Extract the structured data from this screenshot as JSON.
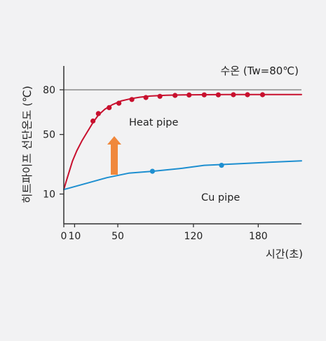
{
  "chart_data": {
    "type": "line",
    "ylabel": "히트파이프 선단온도 (℃)",
    "xlabel": "시간(초)",
    "x_ticks": [
      0,
      10,
      50,
      120,
      180
    ],
    "y_ticks": [
      10,
      50,
      80
    ],
    "xlim": [
      0,
      220
    ],
    "ylim": [
      -10,
      96
    ],
    "grid": false,
    "reference_line": {
      "label": "수온 (Tw=80℃)",
      "value": 80,
      "color": "#8a8a8a"
    },
    "series": [
      {
        "name": "Heat pipe",
        "color": "#c8102e",
        "curve": [
          [
            0,
            13
          ],
          [
            2,
            18
          ],
          [
            5,
            25
          ],
          [
            8,
            32
          ],
          [
            12,
            39
          ],
          [
            17,
            46
          ],
          [
            22,
            52
          ],
          [
            27,
            58
          ],
          [
            32,
            63
          ],
          [
            38,
            67
          ],
          [
            45,
            70
          ],
          [
            53,
            72.5
          ],
          [
            62,
            74
          ],
          [
            70,
            75
          ],
          [
            80,
            75.8
          ],
          [
            95,
            76.3
          ],
          [
            110,
            76.6
          ],
          [
            130,
            76.7
          ],
          [
            150,
            76.8
          ],
          [
            170,
            76.8
          ],
          [
            190,
            76.8
          ],
          [
            220,
            76.8
          ]
        ],
        "markers": [
          [
            27,
            59
          ],
          [
            32,
            64
          ],
          [
            42,
            68
          ],
          [
            51,
            71
          ],
          [
            63,
            73.5
          ],
          [
            76,
            74.8
          ],
          [
            89,
            75.6
          ],
          [
            103,
            76.2
          ],
          [
            116,
            76.5
          ],
          [
            130,
            76.6
          ],
          [
            143,
            76.6
          ],
          [
            157,
            76.7
          ],
          [
            170,
            76.7
          ],
          [
            184,
            76.7
          ]
        ]
      },
      {
        "name": "Cu pipe",
        "color": "#1e8fd0",
        "curve": [
          [
            0,
            13
          ],
          [
            20,
            17
          ],
          [
            40,
            21
          ],
          [
            60,
            24
          ],
          [
            82,
            25.3
          ],
          [
            110,
            27.3
          ],
          [
            130,
            29.3
          ],
          [
            160,
            30.3
          ],
          [
            190,
            31.3
          ],
          [
            220,
            32.3
          ]
        ],
        "markers": [
          [
            82,
            25.3
          ],
          [
            146,
            29.3
          ]
        ]
      }
    ],
    "annotations": [
      "Heat pipe",
      "Cu pipe"
    ]
  }
}
